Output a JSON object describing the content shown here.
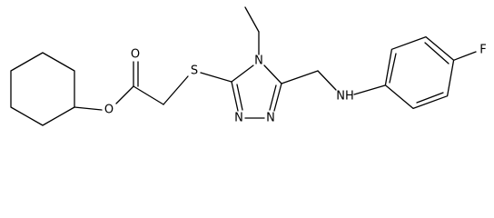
{
  "atoms": [
    {
      "label": "O"
    },
    {
      "label": "O"
    },
    {
      "label": "S"
    },
    {
      "label": "N"
    },
    {
      "label": "N"
    },
    {
      "label": "N"
    },
    {
      "label": "NH"
    },
    {
      "label": "F"
    }
  ]
}
